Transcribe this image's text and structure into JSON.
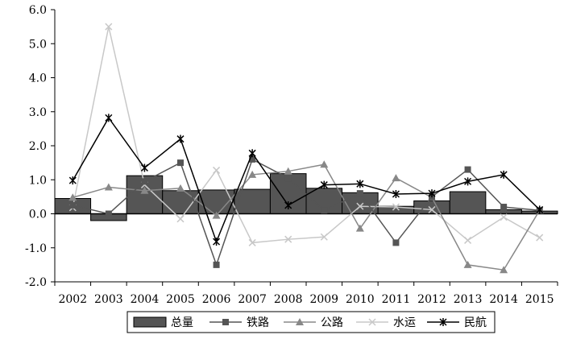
{
  "chart_data": {
    "type": "bar",
    "x": [
      "2002",
      "2003",
      "2004",
      "2005",
      "2006",
      "2007",
      "2008",
      "2009",
      "2010",
      "2011",
      "2012",
      "2013",
      "2014",
      "2015"
    ],
    "ylim": [
      -2.0,
      6.0
    ],
    "ytick_labels": [
      "-2.0",
      "-1.0",
      "0.0",
      "1.0",
      "2.0",
      "3.0",
      "4.0",
      "5.0",
      "6.0"
    ],
    "ytick_values": [
      -2,
      -1,
      0,
      1,
      2,
      3,
      4,
      5,
      6
    ],
    "grid": false,
    "legend_position": "bottom",
    "series": [
      {
        "name": "总量",
        "type": "bar",
        "color": "#555555",
        "values": [
          0.45,
          -0.2,
          1.12,
          0.68,
          0.7,
          0.72,
          1.18,
          0.75,
          0.62,
          0.22,
          0.38,
          0.65,
          0.12,
          0.08
        ]
      },
      {
        "name": "铁路",
        "type": "line",
        "marker": "square",
        "color": "#555555",
        "values": [
          0.25,
          0.0,
          0.95,
          1.5,
          -1.5,
          1.6,
          1.05,
          0.1,
          0.6,
          -0.85,
          0.5,
          1.3,
          0.2,
          0.1
        ]
      },
      {
        "name": "公路",
        "type": "line",
        "marker": "triangle",
        "color": "#888888",
        "values": [
          0.48,
          0.78,
          0.68,
          0.75,
          -0.05,
          1.15,
          1.25,
          1.45,
          -0.43,
          1.05,
          0.48,
          -1.5,
          -1.65,
          0.1
        ]
      },
      {
        "name": "水运",
        "type": "line",
        "marker": "x",
        "color": "#c8c8c8",
        "values": [
          0.18,
          5.5,
          0.85,
          -0.15,
          1.28,
          -0.85,
          -0.75,
          -0.68,
          0.22,
          0.2,
          0.12,
          -0.78,
          -0.1,
          -0.7
        ]
      },
      {
        "name": "民航",
        "type": "line",
        "marker": "star",
        "color": "#000000",
        "values": [
          0.98,
          2.82,
          1.35,
          2.2,
          -0.82,
          1.78,
          0.25,
          0.85,
          0.88,
          0.58,
          0.6,
          0.95,
          1.15,
          0.12
        ]
      }
    ]
  }
}
